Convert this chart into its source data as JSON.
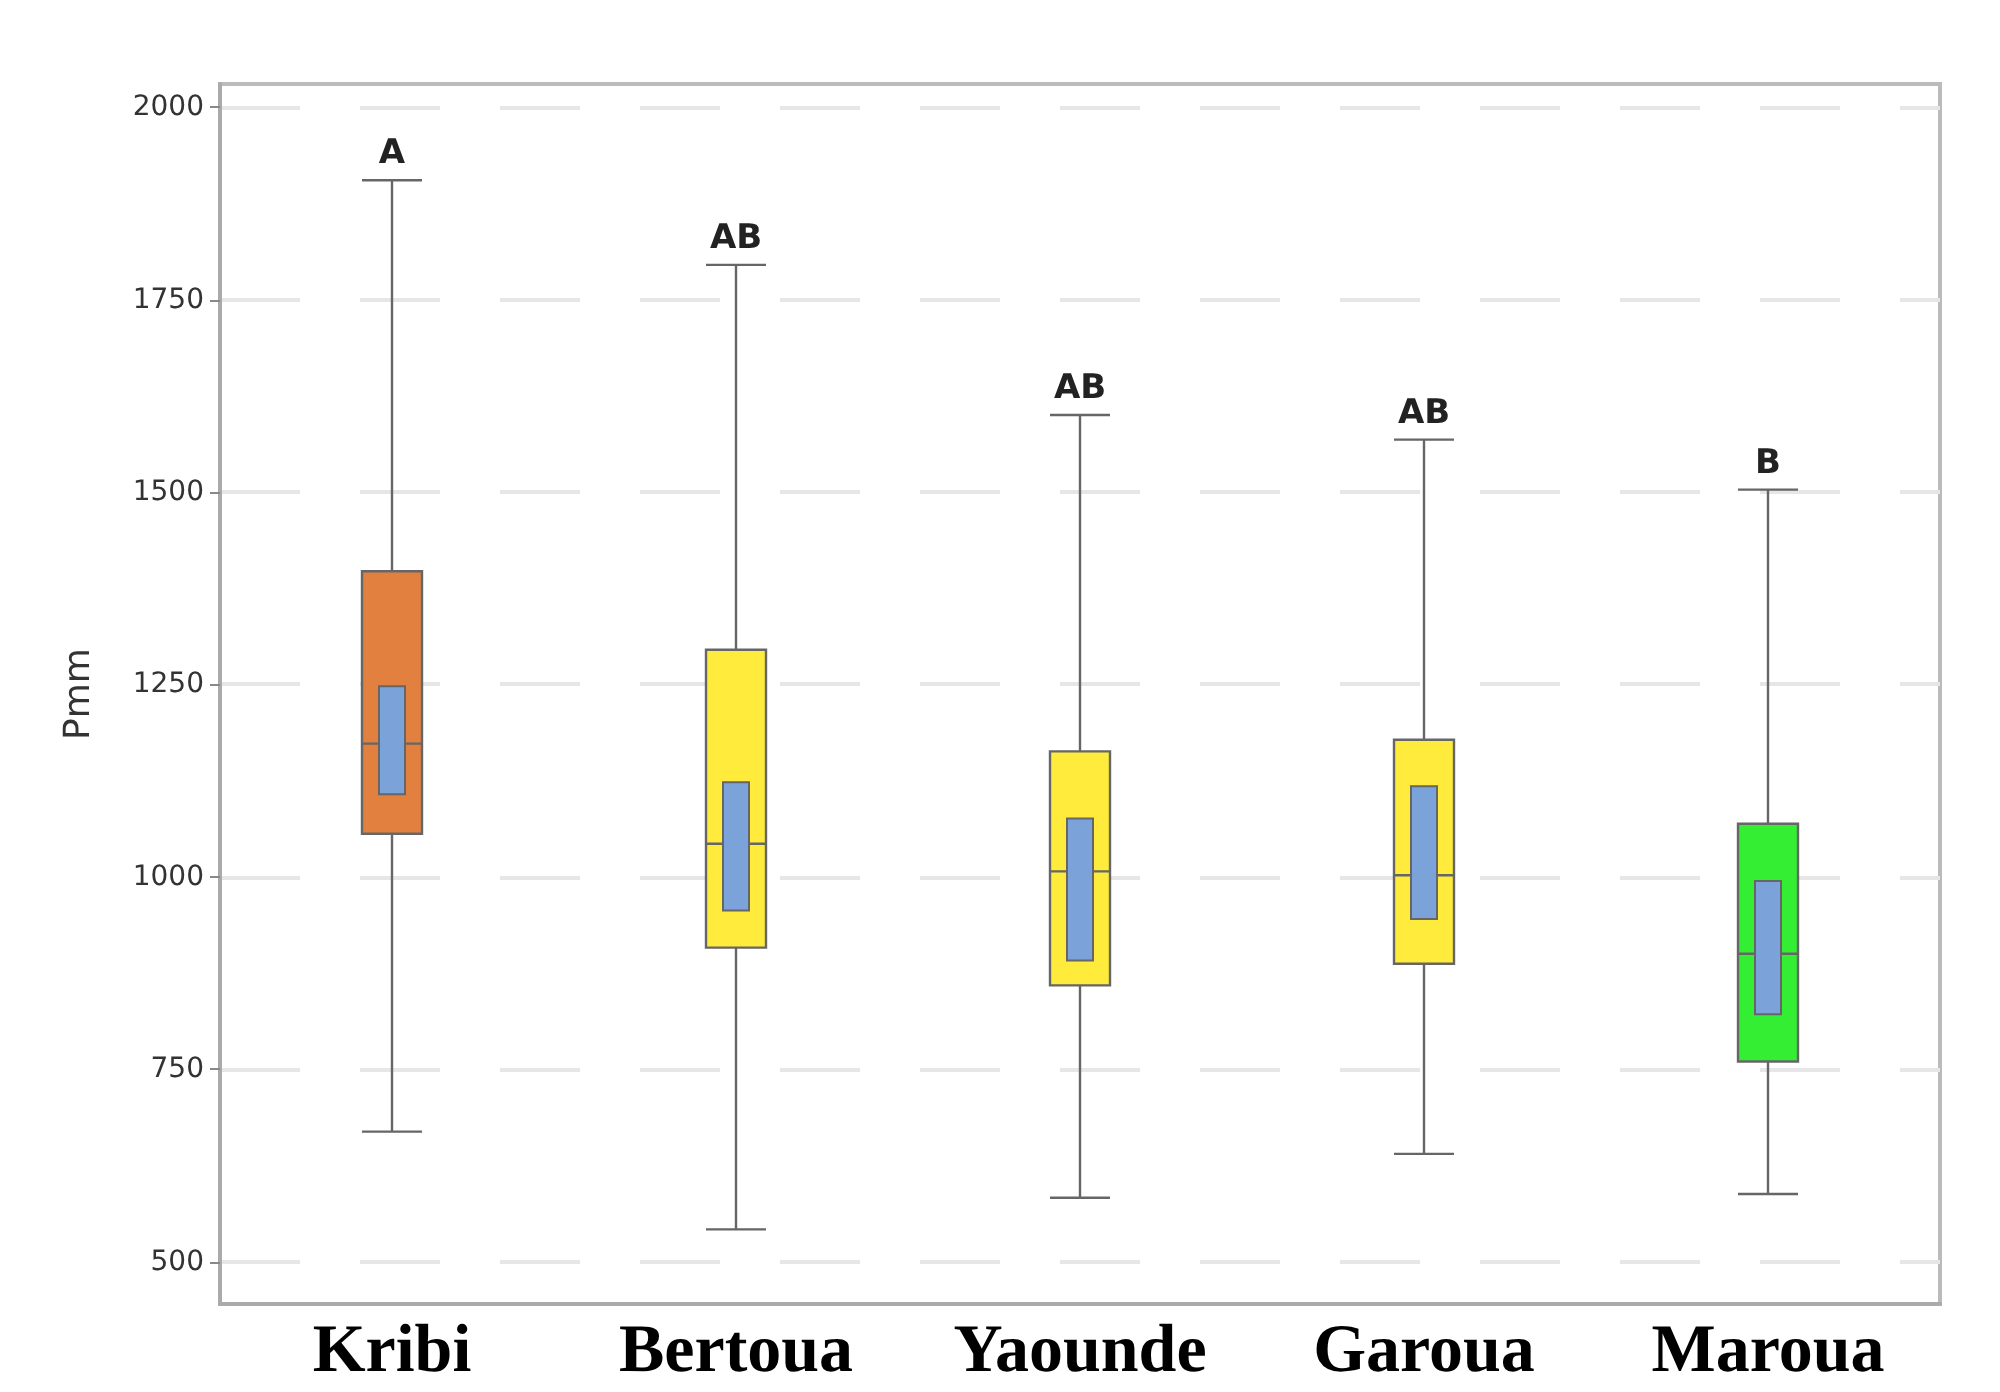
{
  "chart_data": {
    "type": "box",
    "ylabel": "Pmm",
    "categories": [
      "Kribi",
      "Bertoua",
      "Yaounde",
      "Garoua",
      "Maroua"
    ],
    "ylim": [
      445,
      2030
    ],
    "yticks": [
      500,
      750,
      1000,
      1250,
      1500,
      1750,
      2000
    ],
    "grid": "y",
    "series": [
      {
        "colors": [
          "#e2803f",
          "#ffeb3b",
          "#ffeb3b",
          "#ffeb3b",
          "#33ee33"
        ],
        "boxes": [
          {
            "low": 669,
            "q1": 1056,
            "median": 1173,
            "q3": 1397,
            "high": 1905
          },
          {
            "low": 542,
            "q1": 908,
            "median": 1043,
            "q3": 1295,
            "high": 1795
          },
          {
            "low": 583,
            "q1": 859,
            "median": 1007,
            "q3": 1163,
            "high": 1600
          },
          {
            "low": 640,
            "q1": 887,
            "median": 1002,
            "q3": 1178,
            "high": 1568
          },
          {
            "low": 588,
            "q1": 760,
            "median": 900,
            "q3": 1069,
            "high": 1503
          }
        ]
      },
      {
        "type": "bar",
        "color": "#7ba3d9",
        "base": [
          1106,
          955,
          890,
          944,
          820
        ],
        "values": [
          143,
          169,
          187,
          175,
          176
        ]
      }
    ],
    "annotations": [
      "A",
      "AB",
      "AB",
      "AB",
      "B"
    ]
  }
}
